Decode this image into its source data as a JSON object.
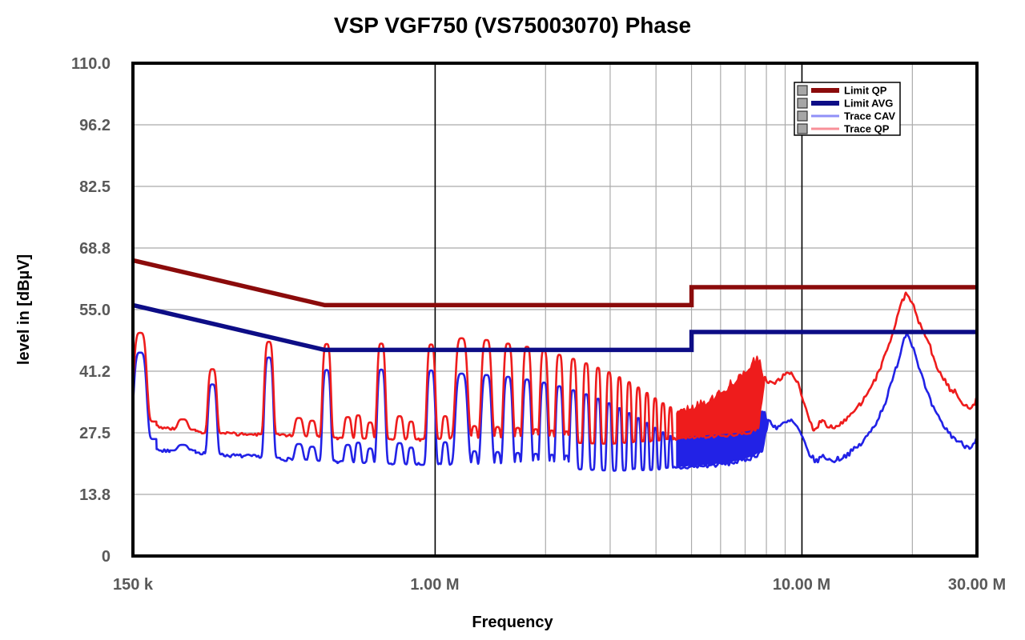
{
  "title": "VSP VGF750 (VS75003070) Phase",
  "axes": {
    "x_label": "Frequency",
    "y_label": "level in [dBµV]",
    "x_ticks": [
      {
        "f": 0.15,
        "label": "150 k"
      },
      {
        "f": 1,
        "label": "1.00 M"
      },
      {
        "f": 10,
        "label": "10.00 M"
      },
      {
        "f": 30,
        "label": "30.00 M"
      }
    ],
    "y_ticks": [
      {
        "v": 110,
        "label": "110.0"
      },
      {
        "v": 96.25,
        "label": "96.2"
      },
      {
        "v": 82.5,
        "label": "82.5"
      },
      {
        "v": 68.75,
        "label": "68.8"
      },
      {
        "v": 55,
        "label": "55.0"
      },
      {
        "v": 41.25,
        "label": "41.2"
      },
      {
        "v": 27.5,
        "label": "27.5"
      },
      {
        "v": 13.75,
        "label": "13.8"
      },
      {
        "v": 0,
        "label": "0"
      }
    ]
  },
  "legend": {
    "entries": [
      {
        "label": "Limit QP",
        "color": "#8B0B0B",
        "kind": "limit"
      },
      {
        "label": "Limit AVG",
        "color": "#0D0D86",
        "kind": "limit"
      },
      {
        "label": "Trace CAV",
        "color": "#9090F8",
        "kind": "trace"
      },
      {
        "label": "Trace QP",
        "color": "#F89098",
        "kind": "trace"
      }
    ]
  },
  "colors": {
    "grid_minor": "#ABABAB",
    "grid_major": "#000000",
    "axis_text": "#595959",
    "border": "#000000",
    "legend_swatch": "#A6A6A6",
    "background": "#FFFFFF"
  },
  "chart_data": {
    "type": "line",
    "x_unit": "MHz",
    "y_unit": "dBµV",
    "x_scale": "log",
    "x_range": [
      0.15,
      30
    ],
    "y_range": [
      0,
      110
    ],
    "grid": {
      "y_lines": [
        96.25,
        82.5,
        68.75,
        55,
        41.25,
        27.5,
        13.75
      ],
      "x_minor": [
        2,
        3,
        4,
        5,
        6,
        7,
        8,
        9,
        20
      ],
      "x_major": [
        1,
        10
      ]
    },
    "limits": [
      {
        "name": "Limit QP",
        "color": "#8B0B0B",
        "points": [
          [
            0.15,
            66
          ],
          [
            0.5,
            56
          ],
          [
            5,
            56
          ],
          [
            5,
            60
          ],
          [
            30,
            60
          ]
        ]
      },
      {
        "name": "Limit AVG",
        "color": "#0D0D86",
        "points": [
          [
            0.15,
            56
          ],
          [
            0.5,
            46
          ],
          [
            5,
            46
          ],
          [
            5,
            50
          ],
          [
            30,
            50
          ]
        ]
      }
    ],
    "traces": [
      {
        "name": "Trace CAV",
        "color": "#2222E6",
        "seed": 7,
        "noise_amp": [
          [
            0.15,
            0.4
          ],
          [
            4.5,
            0.45
          ],
          [
            8,
            0.6
          ],
          [
            30,
            0.6
          ]
        ],
        "band": {
          "range": [
            4.55,
            8.1
          ],
          "edge_noise": 0.8,
          "top": [
            [
              4.55,
              26.4
            ],
            [
              5.0,
              26.9
            ],
            [
              5.5,
              27.6
            ],
            [
              6.0,
              28.5
            ],
            [
              6.5,
              29.6
            ],
            [
              7.0,
              30.8
            ],
            [
              7.5,
              32.0
            ],
            [
              7.8,
              32.6
            ],
            [
              8.1,
              30.3
            ]
          ]
        },
        "line": [
          [
            0.15,
            27.0
          ],
          [
            0.18,
            23.4
          ],
          [
            0.21,
            23.6
          ],
          [
            0.25,
            22.6
          ],
          [
            0.32,
            22.2
          ],
          [
            0.42,
            21.4
          ],
          [
            0.6,
            20.8
          ],
          [
            0.85,
            20.4
          ],
          [
            1.3,
            20.2
          ],
          [
            2.0,
            19.6
          ],
          [
            3.0,
            19.0
          ],
          [
            4.0,
            19.2
          ],
          [
            4.55,
            19.6
          ],
          [
            5.0,
            19.9
          ],
          [
            5.6,
            20.2
          ],
          [
            6.2,
            20.6
          ],
          [
            6.8,
            21.2
          ],
          [
            7.4,
            22.2
          ],
          [
            7.8,
            23.6
          ],
          [
            8.1,
            30.3
          ],
          [
            8.5,
            28.7
          ],
          [
            9.0,
            29.6
          ],
          [
            9.35,
            30.2
          ],
          [
            9.7,
            28.8
          ],
          [
            10.0,
            26.5
          ],
          [
            10.4,
            23.2
          ],
          [
            10.9,
            21.0
          ],
          [
            11.2,
            21.9
          ],
          [
            11.5,
            22.3
          ],
          [
            12.0,
            21.2
          ],
          [
            12.5,
            21.6
          ],
          [
            13.0,
            22.2
          ],
          [
            13.7,
            23.4
          ],
          [
            14.5,
            25.0
          ],
          [
            15.3,
            27.5
          ],
          [
            16.1,
            30.5
          ],
          [
            16.9,
            34.5
          ],
          [
            17.7,
            39.5
          ],
          [
            18.5,
            45.0
          ],
          [
            19.0,
            48.8
          ],
          [
            19.3,
            49.8
          ],
          [
            19.7,
            48.7
          ],
          [
            20.3,
            45.5
          ],
          [
            21.0,
            41.5
          ],
          [
            21.7,
            37.5
          ],
          [
            22.4,
            34.5
          ],
          [
            23.1,
            32.0
          ],
          [
            23.9,
            30.0
          ],
          [
            24.7,
            28.3
          ],
          [
            25.5,
            27.0
          ],
          [
            26.3,
            26.0
          ],
          [
            27.1,
            25.2
          ],
          [
            27.9,
            24.6
          ],
          [
            28.6,
            24.4
          ],
          [
            29.2,
            25.0
          ],
          [
            30.0,
            26.3
          ]
        ],
        "peaks": [
          [
            0.157,
            45.4,
            0.02
          ],
          [
            0.205,
            24.8,
            0.016
          ],
          [
            0.247,
            38.3,
            0.014
          ],
          [
            0.352,
            44.3,
            0.014
          ],
          [
            0.425,
            25.0,
            0.013
          ],
          [
            0.462,
            24.4,
            0.011
          ],
          [
            0.506,
            41.5,
            0.013
          ],
          [
            0.578,
            24.8,
            0.011
          ],
          [
            0.617,
            25.3,
            0.009
          ],
          [
            0.665,
            24.0,
            0.009
          ],
          [
            0.713,
            41.6,
            0.013
          ],
          [
            0.8,
            25.2,
            0.011
          ],
          [
            0.86,
            24.2,
            0.009
          ],
          [
            0.975,
            41.4,
            0.013
          ],
          [
            1.065,
            25.4,
            0.009
          ],
          [
            1.28,
            23.4,
            0.008
          ],
          [
            1.48,
            23.2,
            0.008
          ],
          [
            1.68,
            23.0,
            0.008
          ],
          [
            1.88,
            22.8,
            0.008
          ],
          [
            2.08,
            22.6,
            0.007
          ],
          [
            2.28,
            22.4,
            0.007
          ],
          [
            1.18,
            40.7,
            0.019
          ],
          [
            1.38,
            40.4,
            0.016
          ],
          [
            1.58,
            40.0,
            0.014
          ],
          [
            1.78,
            39.4,
            0.013
          ],
          [
            1.98,
            38.7,
            0.012
          ],
          [
            2.18,
            37.9,
            0.011
          ],
          [
            2.38,
            37.0,
            0.01
          ],
          [
            2.58,
            36.1,
            0.009
          ],
          [
            2.78,
            35.1,
            0.008
          ],
          [
            2.98,
            34.1,
            0.008
          ],
          [
            3.18,
            33.0,
            0.007
          ],
          [
            3.38,
            31.9,
            0.007
          ],
          [
            3.58,
            30.8,
            0.007
          ],
          [
            3.78,
            29.7,
            0.006
          ],
          [
            3.98,
            28.6,
            0.006
          ],
          [
            4.18,
            27.6,
            0.006
          ],
          [
            4.38,
            26.8,
            0.005
          ]
        ]
      },
      {
        "name": "Trace QP",
        "color": "#EE1C1C",
        "seed": 3,
        "noise_amp": [
          [
            0.15,
            0.35
          ],
          [
            4.5,
            0.4
          ],
          [
            8,
            0.55
          ],
          [
            30,
            0.55
          ]
        ],
        "band": {
          "range": [
            4.55,
            7.9
          ],
          "edge_noise": 1.0,
          "top": [
            [
              4.55,
              32.3
            ],
            [
              5.0,
              33.2
            ],
            [
              5.5,
              34.8
            ],
            [
              6.0,
              36.7
            ],
            [
              6.5,
              39.0
            ],
            [
              7.0,
              41.6
            ],
            [
              7.35,
              43.6
            ],
            [
              7.58,
              44.6
            ],
            [
              7.75,
              42.5
            ],
            [
              7.9,
              39.8
            ]
          ]
        },
        "line": [
          [
            0.15,
            30.5
          ],
          [
            0.18,
            28.6
          ],
          [
            0.205,
            28.2
          ],
          [
            0.24,
            27.4
          ],
          [
            0.3,
            27.2
          ],
          [
            0.4,
            26.8
          ],
          [
            0.55,
            26.3
          ],
          [
            0.8,
            26.0
          ],
          [
            1.2,
            26.2
          ],
          [
            2.0,
            25.4
          ],
          [
            3.0,
            25.0
          ],
          [
            4.0,
            25.6
          ],
          [
            4.55,
            26.2
          ],
          [
            5.0,
            26.6
          ],
          [
            5.5,
            26.8
          ],
          [
            6.0,
            27.0
          ],
          [
            6.6,
            27.3
          ],
          [
            7.2,
            27.8
          ],
          [
            7.6,
            28.8
          ],
          [
            7.9,
            39.8
          ],
          [
            8.05,
            38.9
          ],
          [
            8.35,
            38.3
          ],
          [
            8.7,
            39.5
          ],
          [
            9.1,
            40.6
          ],
          [
            9.35,
            40.8
          ],
          [
            9.7,
            39.0
          ],
          [
            10.0,
            36.0
          ],
          [
            10.4,
            31.0
          ],
          [
            10.8,
            27.8
          ],
          [
            11.1,
            29.5
          ],
          [
            11.35,
            30.5
          ],
          [
            11.7,
            28.8
          ],
          [
            12.1,
            28.6
          ],
          [
            12.5,
            29.3
          ],
          [
            13.0,
            30.2
          ],
          [
            13.6,
            31.6
          ],
          [
            14.3,
            33.5
          ],
          [
            15.0,
            36.0
          ],
          [
            15.8,
            39.2
          ],
          [
            16.6,
            43.2
          ],
          [
            17.4,
            48.0
          ],
          [
            18.2,
            53.5
          ],
          [
            18.8,
            57.0
          ],
          [
            19.2,
            58.6
          ],
          [
            19.6,
            58.0
          ],
          [
            20.2,
            55.5
          ],
          [
            20.8,
            52.5
          ],
          [
            21.3,
            50.2
          ],
          [
            21.9,
            48.6
          ],
          [
            22.4,
            46.5
          ],
          [
            23.0,
            43.5
          ],
          [
            23.7,
            41.0
          ],
          [
            24.4,
            39.3
          ],
          [
            25.0,
            38.0
          ],
          [
            25.6,
            36.6
          ],
          [
            26.1,
            37.2
          ],
          [
            26.7,
            35.8
          ],
          [
            27.3,
            34.3
          ],
          [
            28.0,
            33.6
          ],
          [
            28.7,
            33.0
          ],
          [
            29.3,
            33.4
          ],
          [
            30.0,
            35.2
          ]
        ],
        "peaks": [
          [
            0.157,
            49.8,
            0.02
          ],
          [
            0.205,
            30.5,
            0.016
          ],
          [
            0.247,
            41.7,
            0.014
          ],
          [
            0.352,
            47.8,
            0.014
          ],
          [
            0.425,
            30.8,
            0.013
          ],
          [
            0.462,
            30.2,
            0.011
          ],
          [
            0.506,
            47.3,
            0.013
          ],
          [
            0.578,
            31.0,
            0.011
          ],
          [
            0.617,
            31.4,
            0.009
          ],
          [
            0.665,
            29.8,
            0.009
          ],
          [
            0.713,
            47.4,
            0.013
          ],
          [
            0.8,
            31.2,
            0.011
          ],
          [
            0.86,
            30.0,
            0.009
          ],
          [
            0.975,
            47.2,
            0.013
          ],
          [
            1.065,
            31.2,
            0.009
          ],
          [
            1.28,
            29.0,
            0.008
          ],
          [
            1.48,
            28.8,
            0.008
          ],
          [
            1.68,
            28.6,
            0.008
          ],
          [
            1.88,
            28.3,
            0.008
          ],
          [
            2.08,
            28.0,
            0.007
          ],
          [
            2.28,
            27.8,
            0.007
          ],
          [
            1.18,
            48.6,
            0.019
          ],
          [
            1.38,
            48.2,
            0.016
          ],
          [
            1.58,
            47.4,
            0.014
          ],
          [
            1.78,
            46.7,
            0.013
          ],
          [
            1.98,
            45.8,
            0.012
          ],
          [
            2.18,
            44.9,
            0.011
          ],
          [
            2.38,
            44.0,
            0.01
          ],
          [
            2.58,
            43.0,
            0.009
          ],
          [
            2.78,
            42.0,
            0.008
          ],
          [
            2.98,
            41.0,
            0.008
          ],
          [
            3.18,
            39.9,
            0.007
          ],
          [
            3.38,
            38.8,
            0.007
          ],
          [
            3.58,
            37.6,
            0.007
          ],
          [
            3.78,
            36.4,
            0.006
          ],
          [
            3.98,
            35.2,
            0.006
          ],
          [
            4.18,
            34.1,
            0.006
          ],
          [
            4.38,
            33.2,
            0.005
          ]
        ]
      }
    ]
  }
}
